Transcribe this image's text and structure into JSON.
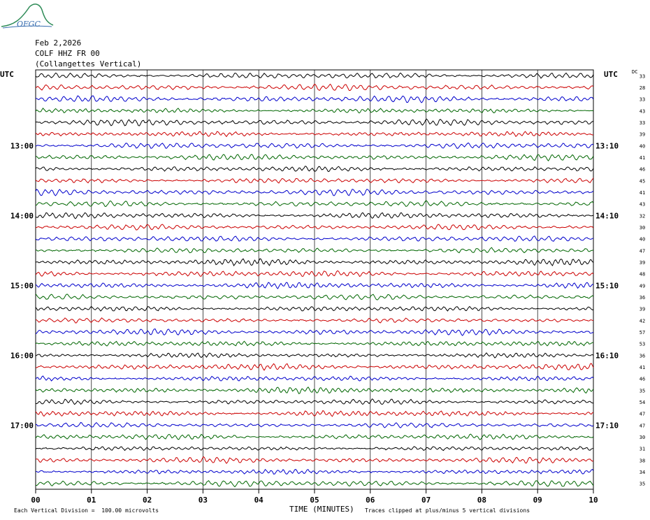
{
  "logo_text": "OFGC",
  "header": {
    "date": "Feb 2,2026",
    "station": "COLF HHZ FR 00",
    "location": "(Collangettes Vertical)"
  },
  "utc_left": "UTC",
  "utc_right": "UTC",
  "dc_label": "DC",
  "footer": {
    "division": "Each Vertical Division =  100.00 microvolts",
    "time_label": "TIME (MINUTES)",
    "clip_note": "Traces clipped at plus/minus 5 vertical divisions"
  },
  "chart_data": {
    "type": "line",
    "title": "Feb 2,2026 COLF HHZ FR 00 (Collangettes Vertical)",
    "xlabel": "TIME (MINUTES)",
    "x_ticks": [
      "00",
      "01",
      "02",
      "03",
      "04",
      "05",
      "06",
      "07",
      "08",
      "09",
      "10"
    ],
    "xlim": [
      0,
      10
    ],
    "grid": true,
    "trace_count": 36,
    "trace_colors": [
      "#000000",
      "#cc0000",
      "#0000cc",
      "#006600"
    ],
    "left_hour_labels": [
      {
        "trace": 6,
        "label": "13:00"
      },
      {
        "trace": 12,
        "label": "14:00"
      },
      {
        "trace": 18,
        "label": "15:00"
      },
      {
        "trace": 24,
        "label": "16:00"
      },
      {
        "trace": 30,
        "label": "17:00"
      }
    ],
    "right_hour_labels": [
      {
        "trace": 6,
        "label": "13:10"
      },
      {
        "trace": 12,
        "label": "14:10"
      },
      {
        "trace": 18,
        "label": "15:10"
      },
      {
        "trace": 24,
        "label": "16:10"
      },
      {
        "trace": 30,
        "label": "17:10"
      }
    ],
    "dc_offsets": [
      33,
      28,
      33,
      43,
      33,
      39,
      40,
      41,
      46,
      45,
      41,
      43,
      32,
      30,
      40,
      47,
      39,
      48,
      49,
      36,
      39,
      42,
      57,
      53,
      36,
      41,
      46,
      35,
      54,
      47,
      47,
      30,
      31,
      38,
      34,
      35
    ],
    "division_microvolts": 100.0,
    "clip_divisions": 5
  }
}
